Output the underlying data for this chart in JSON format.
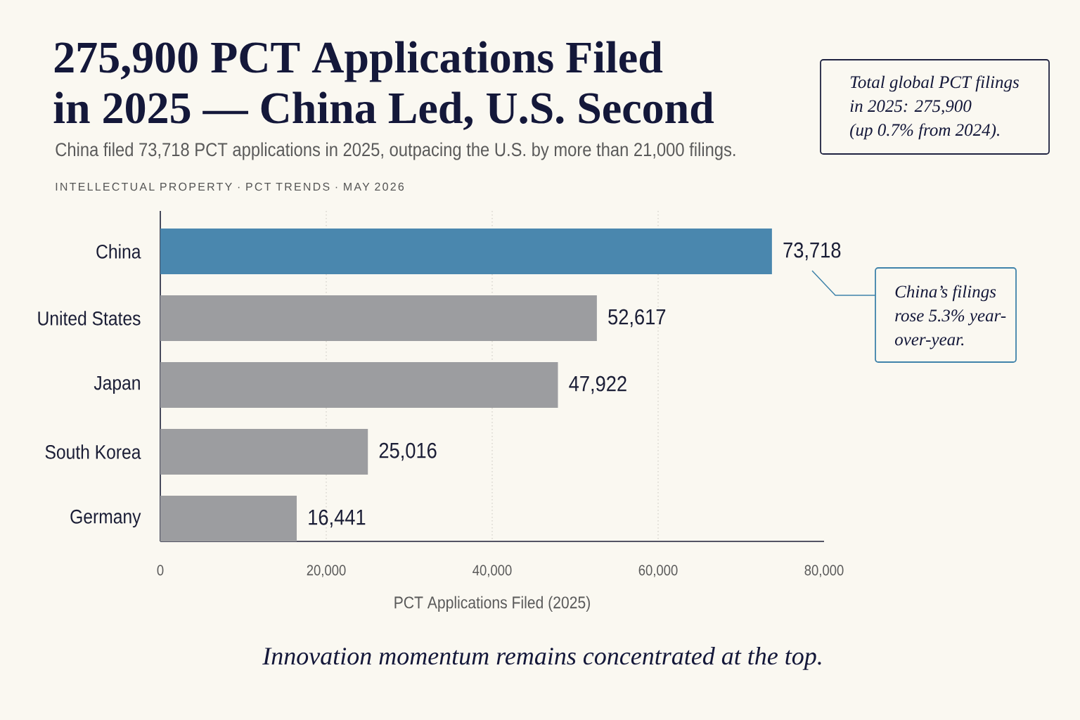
{
  "chart_data": {
    "type": "bar",
    "orientation": "horizontal",
    "title": "275,900 PCT Applications Filed in 2025 — China Led, U.S. Second",
    "subtitle": "China filed 73,718 PCT applications in 2025, outpacing the U.S. by more than 21,000 filings.",
    "xlabel": "PCT Applications Filed (2025)",
    "categories": [
      "China",
      "United States",
      "Japan",
      "South Korea",
      "Germany"
    ],
    "values": [
      73718,
      52617,
      47922,
      25016,
      16441
    ],
    "value_labels": [
      "73,718",
      "52,617",
      "47,922",
      "25,016",
      "16,441"
    ],
    "colors": [
      "#4a87ae",
      "#9c9da0",
      "#9c9da0",
      "#9c9da0",
      "#9c9da0"
    ],
    "xlim": [
      0,
      80000
    ],
    "xticks": [
      0,
      {
        "value": 20000,
        "label": "20,000"
      },
      {
        "value": 40000,
        "label": "40,000"
      },
      {
        "value": 60000,
        "label": "60,000"
      },
      {
        "value": 80000,
        "label": "80,000"
      }
    ],
    "grid": "x",
    "annotations": [
      "INTELLECTUAL PROPERTY · PCT TRENDS · MAY 2026",
      "Total global PCT filings in 2025: 275,900 (up 0.7% from 2024).",
      "China’s filings rose 5.3% year-over-year.",
      "Innovation momentum remains concentrated at the top."
    ]
  }
}
